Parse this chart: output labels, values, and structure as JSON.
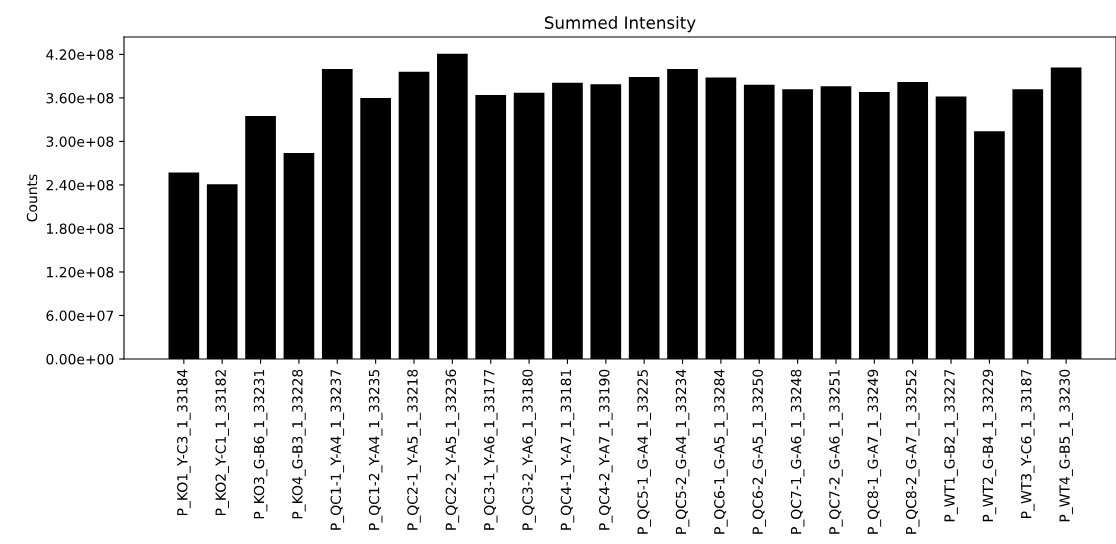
{
  "chart_data": {
    "type": "bar",
    "title": "Summed Intensity",
    "ylabel": "Counts",
    "categories": [
      "P_KO1_Y-C3_1_33184",
      "P_KO2_Y-C1_1_33182",
      "P_KO3_G-B6_1_33231",
      "P_KO4_G-B3_1_33228",
      "P_QC1-1_Y-A4_1_33237",
      "P_QC1-2_Y-A4_1_33235",
      "P_QC2-1_Y-A5_1_33218",
      "P_QC2-2_Y-A5_1_33236",
      "P_QC3-1_Y-A6_1_33177",
      "P_QC3-2_Y-A6_1_33180",
      "P_QC4-1_Y-A7_1_33181",
      "P_QC4-2_Y-A7_1_33190",
      "P_QC5-1_G-A4_1_33225",
      "P_QC5-2_G-A4_1_33234",
      "P_QC6-1_G-A5_1_33284",
      "P_QC6-2_G-A5_1_33250",
      "P_QC7-1_G-A6_1_33248",
      "P_QC7-2_G-A6_1_33251",
      "P_QC8-1_G-A7_1_33249",
      "P_QC8-2_G-A7_1_33252",
      "P_WT1_G-B2_1_33227",
      "P_WT2_G-B4_1_33229",
      "P_WT3_Y-C6_1_33187",
      "P_WT4_G-B5_1_33230"
    ],
    "values": [
      257000000,
      241000000,
      335000000,
      284000000,
      400000000,
      360000000,
      396000000,
      421000000,
      364000000,
      367000000,
      381000000,
      379000000,
      389000000,
      400000000,
      388000000,
      378000000,
      372000000,
      376000000,
      368000000,
      382000000,
      362000000,
      314000000,
      372000000,
      402000000
    ],
    "color": "#000000",
    "ylim": [
      0,
      444000000
    ],
    "yticks": [
      {
        "value": 0,
        "label": "0.00e+00"
      },
      {
        "value": 60000000,
        "label": "6.00e+07"
      },
      {
        "value": 120000000,
        "label": "1.20e+08"
      },
      {
        "value": 180000000,
        "label": "1.80e+08"
      },
      {
        "value": 240000000,
        "label": "2.40e+08"
      },
      {
        "value": 300000000,
        "label": "3.00e+08"
      },
      {
        "value": 360000000,
        "label": "3.60e+08"
      },
      {
        "value": 420000000,
        "label": "4.20e+08"
      }
    ],
    "grid": false,
    "legend": false
  }
}
